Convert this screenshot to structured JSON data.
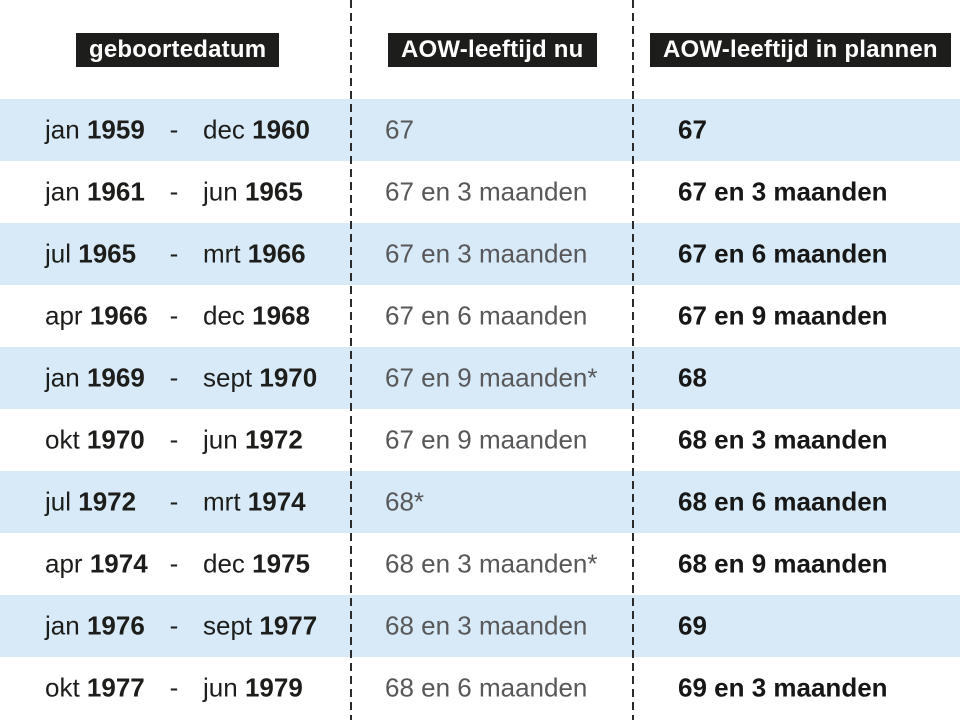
{
  "chart_data": {
    "type": "table",
    "title": "",
    "columns": [
      {
        "label": "geboortedatum"
      },
      {
        "label": "AOW-leeftijd nu"
      },
      {
        "label": "AOW-leeftijd in plannen"
      }
    ],
    "range_separator": "-",
    "rows": [
      {
        "start_month": "jan",
        "start_year": "1959",
        "end_month": "dec",
        "end_year": "1960",
        "aow_now": "67",
        "aow_plan": "67"
      },
      {
        "start_month": "jan",
        "start_year": "1961",
        "end_month": "jun",
        "end_year": "1965",
        "aow_now": "67 en 3 maanden",
        "aow_plan": "67 en 3 maanden"
      },
      {
        "start_month": "jul",
        "start_year": "1965",
        "end_month": "mrt",
        "end_year": "1966",
        "aow_now": "67 en 3 maanden",
        "aow_plan": "67 en 6 maanden"
      },
      {
        "start_month": "apr",
        "start_year": "1966",
        "end_month": "dec",
        "end_year": "1968",
        "aow_now": "67 en 6 maanden",
        "aow_plan": "67 en 9 maanden"
      },
      {
        "start_month": "jan",
        "start_year": "1969",
        "end_month": "sept",
        "end_year": "1970",
        "aow_now": "67 en 9 maanden*",
        "aow_plan": "68"
      },
      {
        "start_month": "okt",
        "start_year": "1970",
        "end_month": "jun",
        "end_year": "1972",
        "aow_now": "67 en 9 maanden",
        "aow_plan": "68 en 3 maanden"
      },
      {
        "start_month": "jul",
        "start_year": "1972",
        "end_month": "mrt",
        "end_year": "1974",
        "aow_now": "68*",
        "aow_plan": "68 en 6 maanden"
      },
      {
        "start_month": "apr",
        "start_year": "1974",
        "end_month": "dec",
        "end_year": "1975",
        "aow_now": "68 en 3 maanden*",
        "aow_plan": "68 en 9 maanden"
      },
      {
        "start_month": "jan",
        "start_year": "1976",
        "end_month": "sept",
        "end_year": "1977",
        "aow_now": "68 en 3 maanden",
        "aow_plan": "69"
      },
      {
        "start_month": "okt",
        "start_year": "1977",
        "end_month": "jun",
        "end_year": "1979",
        "aow_now": "68 en 6 maanden",
        "aow_plan": "69 en 3 maanden"
      }
    ],
    "layout_hints": {
      "striped_row_indices": [
        0,
        2,
        4,
        6,
        8
      ],
      "column_dividers": "dashed vertical lines between columns"
    }
  },
  "colors": {
    "header_bg": "#1d1d1b",
    "header_text": "#ffffff",
    "stripe_blue": "#d8eaf7",
    "now_column_text": "#58585b",
    "plan_column_text": "#171717",
    "divider": "#2b2b2b",
    "background": "#ffffff"
  }
}
